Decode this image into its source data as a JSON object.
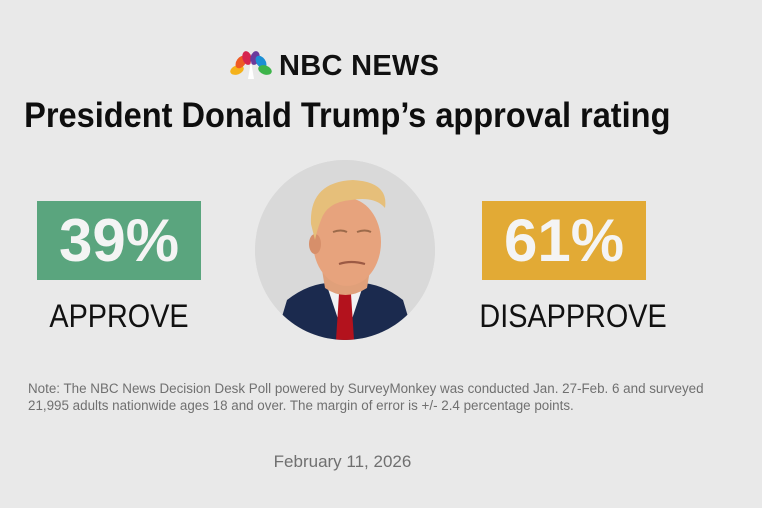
{
  "brand": {
    "name": "NBC NEWS",
    "icon": "peacock-icon"
  },
  "title": "President Donald Trump’s approval rating",
  "approve": {
    "value": "39%",
    "label": "APPROVE",
    "color": "#5aa57e"
  },
  "disapprove": {
    "value": "61%",
    "label": "DISAPPROVE",
    "color": "#e2aa35"
  },
  "portrait": {
    "icon": "portrait-photo"
  },
  "note": "Note: The NBC News Decision Desk Poll powered by SurveyMonkey was conducted Jan. 27-Feb. 6 and surveyed 21,995 adults nationwide ages 18 and over. The margin of error is +/- 2.4 percentage points.",
  "date": "February 11, 2026"
}
